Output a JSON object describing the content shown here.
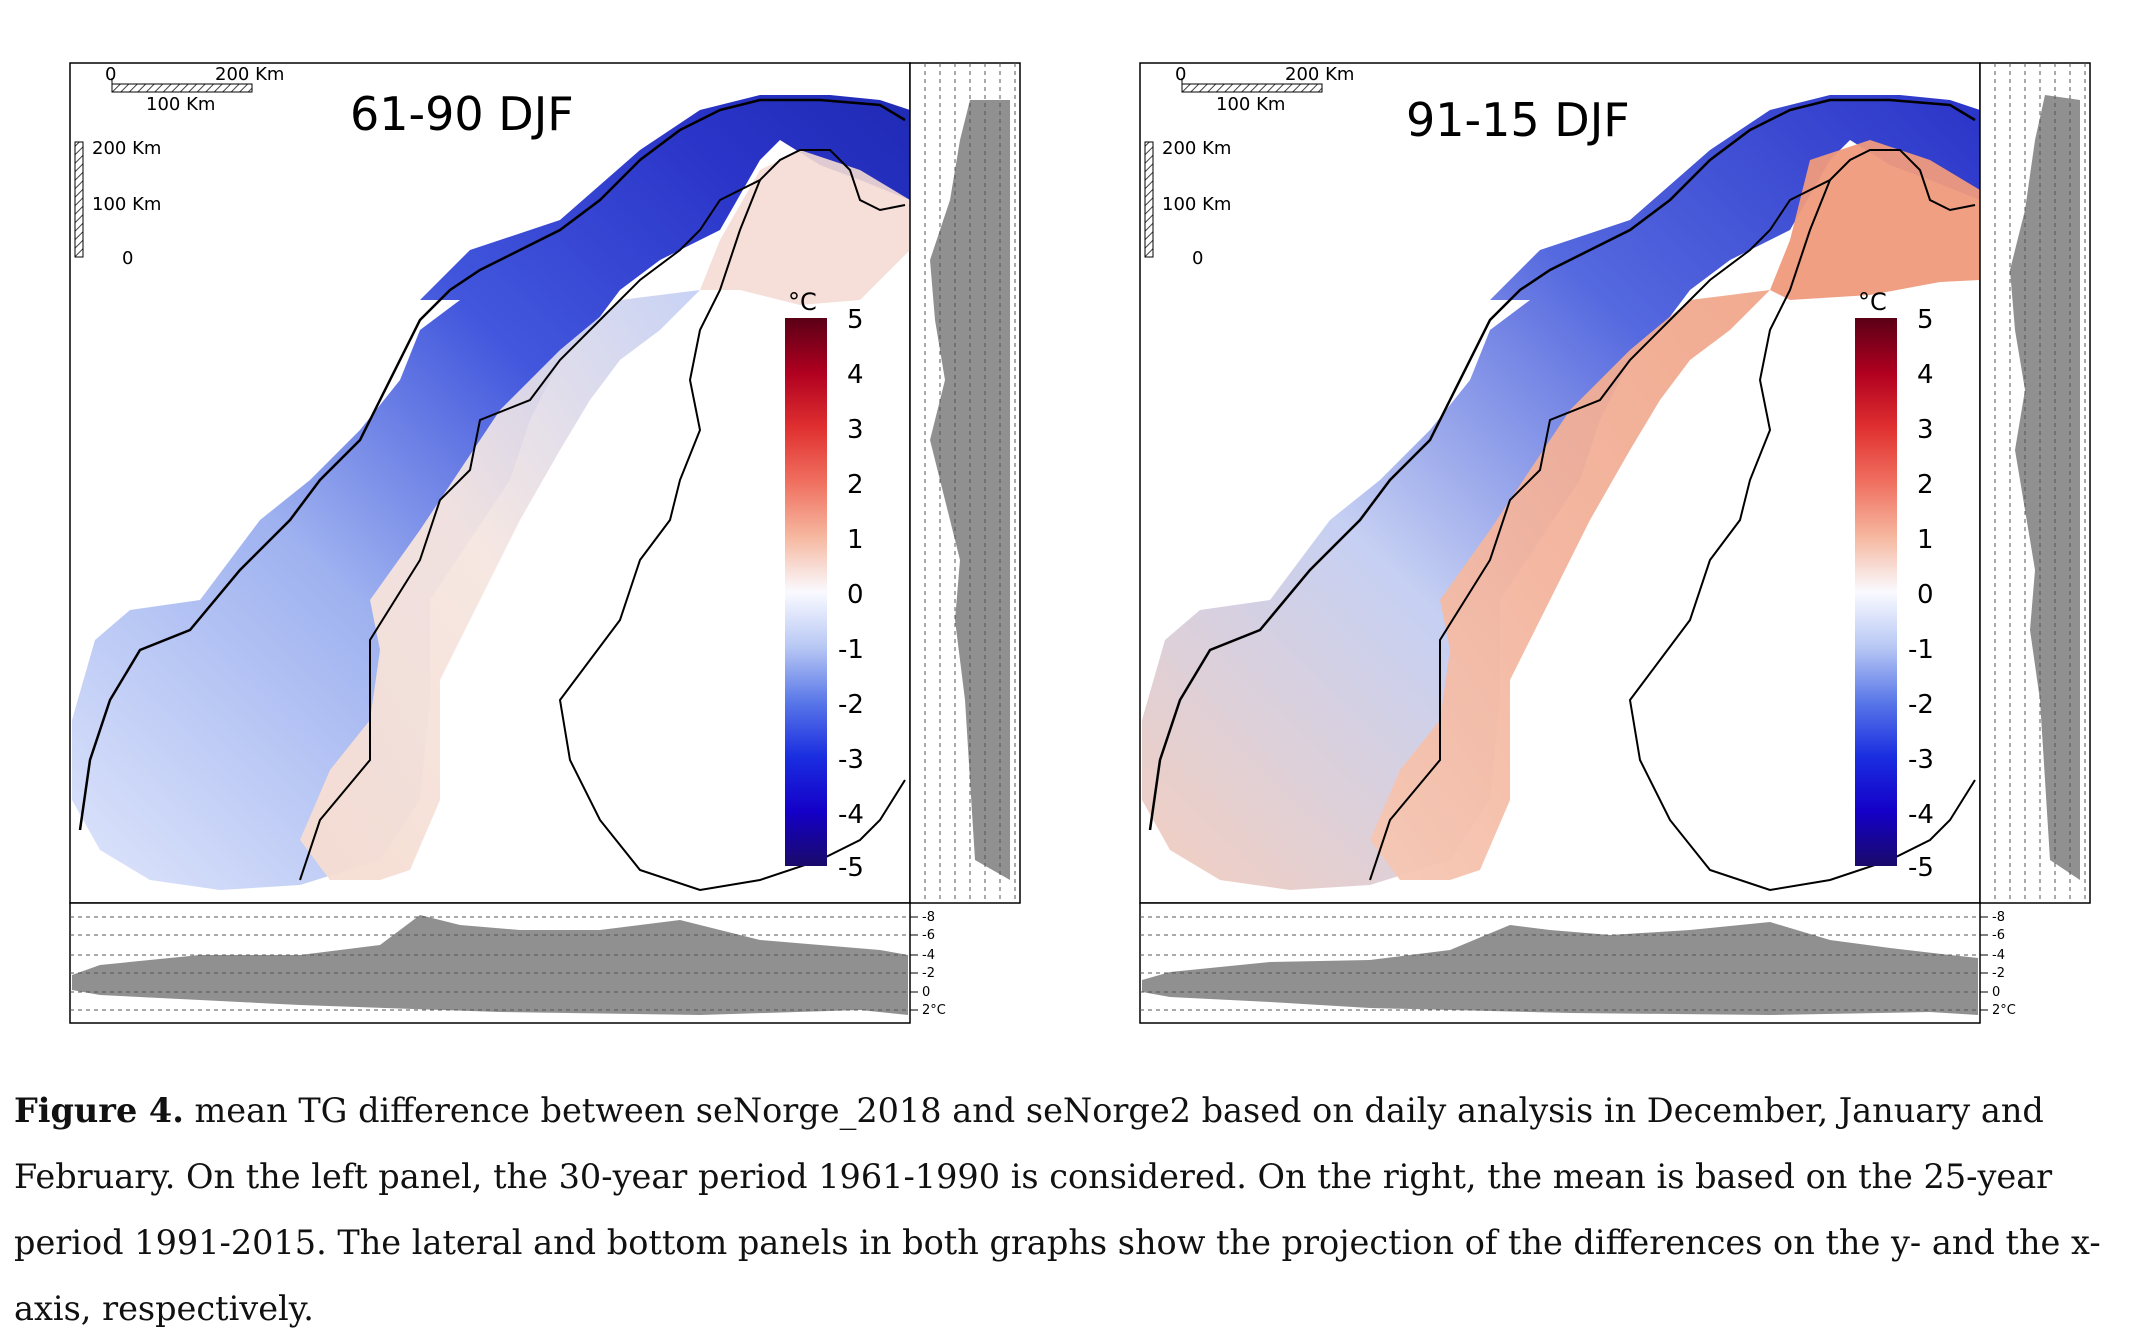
{
  "colors": {
    "cold_dark": "#1a0a8a",
    "cold": "#2f3fd6",
    "cold_light": "#9fb6ee",
    "neutral": "#f8f8ff",
    "warm_light": "#f6c8b4",
    "warm": "#f08060",
    "warm_dark": "#8b0a1e",
    "projection_fill": "#909090",
    "border_line": "#000000"
  },
  "panels": [
    {
      "title": "61-90 DJF",
      "scalebar": {
        "h_zero": "0",
        "h_full": "200 Km",
        "h_half": "100 Km",
        "v_full": "200 Km",
        "v_half": "100 Km",
        "v_zero": "0"
      },
      "legend": {
        "unit": "°C",
        "ticks": [
          "5",
          "4",
          "3",
          "2",
          "1",
          "0",
          "-1",
          "-2",
          "-3",
          "-4",
          "-5"
        ]
      },
      "bottom_axis": {
        "labels": [
          "-8",
          "-6",
          "-4",
          "-2",
          "0",
          "2°C"
        ]
      }
    },
    {
      "title": "91-15 DJF",
      "scalebar": {
        "h_zero": "0",
        "h_full": "200 Km",
        "h_half": "100 Km",
        "v_full": "200 Km",
        "v_half": "100 Km",
        "v_zero": "0"
      },
      "legend": {
        "unit": "°C",
        "ticks": [
          "5",
          "4",
          "3",
          "2",
          "1",
          "0",
          "-1",
          "-2",
          "-3",
          "-4",
          "-5"
        ]
      },
      "bottom_axis": {
        "labels": [
          "-8",
          "-6",
          "-4",
          "-2",
          "0",
          "2°C"
        ]
      }
    }
  ],
  "caption": {
    "label": "Figure 4.",
    "text": " mean TG difference between seNorge_2018 and seNorge2 based on daily analysis in December, January and February. On the left panel, the 30-year period 1961-1990 is considered. On the right, the mean is based on the 25-year period 1991-2015. The lateral and bottom panels in both graphs show the projection of the differences on the y- and the x- axis, respectively."
  }
}
